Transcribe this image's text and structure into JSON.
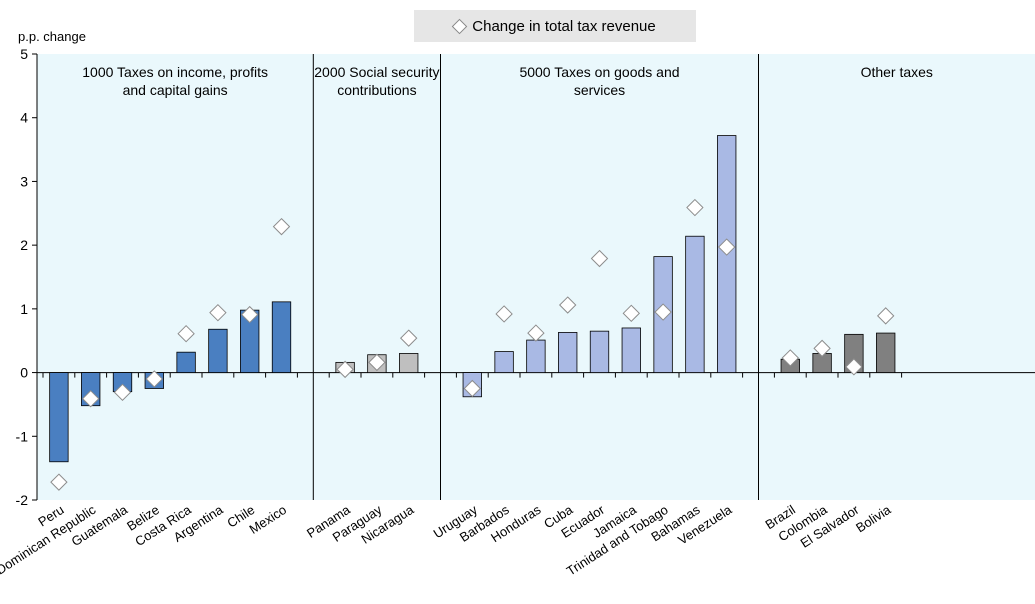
{
  "chart_data": {
    "type": "bar",
    "ylabel": "p.p. change",
    "ylim": [
      -2,
      5
    ],
    "yticks": [
      "-2",
      "-1",
      "0",
      "1",
      "2",
      "3",
      "4",
      "5"
    ],
    "legend": {
      "label": "Change in total tax revenue",
      "placement": "top-center",
      "marker": "diamond"
    },
    "groups": [
      {
        "label": "1000 Taxes on income, profits and capital gains",
        "label_lines": [
          "1000 Taxes on income, profits",
          "and capital gains"
        ],
        "color": "#4a7fc1",
        "categories": [
          "Peru",
          "Dominican Republic",
          "Guatemala",
          "Belize",
          "Costa Rica",
          "Argentina",
          "Chile",
          "Mexico"
        ],
        "bars": [
          -1.4,
          -0.52,
          -0.3,
          -0.25,
          0.32,
          0.68,
          0.98,
          1.11
        ],
        "total_change": [
          -1.72,
          -0.41,
          -0.31,
          -0.1,
          0.61,
          0.94,
          0.91,
          2.29
        ]
      },
      {
        "label": "2000 Social security contributions",
        "label_lines": [
          "2000 Social security",
          "contributions"
        ],
        "color": "#bfbfbf",
        "categories": [
          "Panama",
          "Paraguay",
          "Nicaragua"
        ],
        "bars": [
          0.16,
          0.28,
          0.3
        ],
        "total_change": [
          0.05,
          0.16,
          0.54
        ]
      },
      {
        "label": "5000 Taxes on goods and services",
        "label_lines": [
          "5000 Taxes on goods and",
          "services"
        ],
        "color": "#a9b9e4",
        "categories": [
          "Uruguay",
          "Barbados",
          "Honduras",
          "Cuba",
          "Ecuador",
          "Jamaica",
          "Trinidad and Tobago",
          "Bahamas",
          "Venezuela"
        ],
        "bars": [
          -0.38,
          0.33,
          0.51,
          0.63,
          0.65,
          0.7,
          1.82,
          2.14,
          3.72
        ],
        "total_change": [
          -0.25,
          0.92,
          0.62,
          1.06,
          1.79,
          0.93,
          0.95,
          2.59,
          1.97
        ]
      },
      {
        "label": "Other taxes",
        "label_lines": [
          "Other taxes"
        ],
        "color": "#808080",
        "categories": [
          "Brazil",
          "Colombia",
          "El Salvador",
          "Bolivia"
        ],
        "bars": [
          0.21,
          0.3,
          0.6,
          0.62
        ],
        "total_change": [
          0.23,
          0.38,
          0.09,
          0.89
        ]
      }
    ]
  }
}
